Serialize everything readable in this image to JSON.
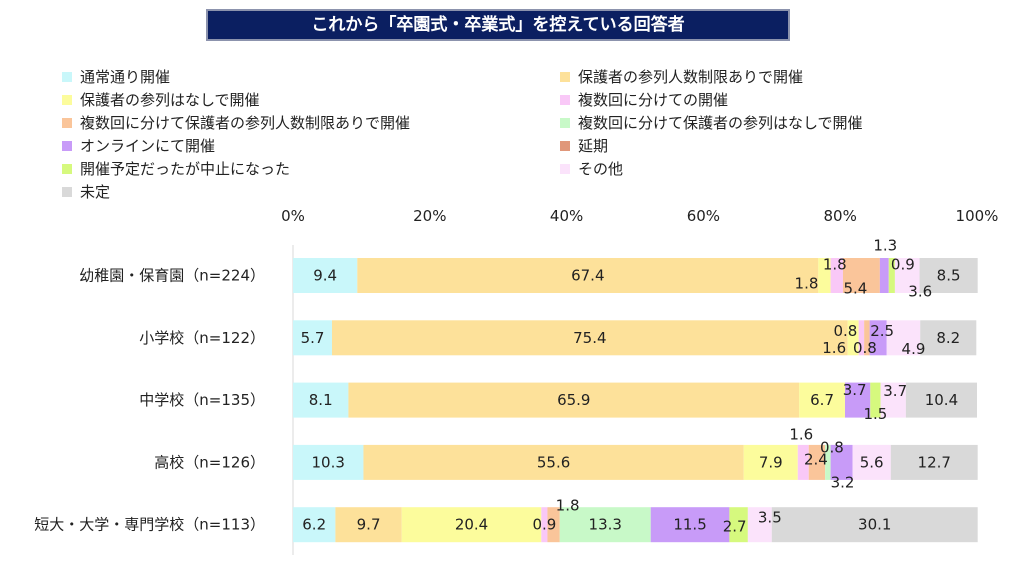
{
  "chart_data": {
    "type": "bar",
    "orientation": "horizontal",
    "stacked": true,
    "percent": true,
    "title": "これから「卒園式・卒業式」を控えている回答者",
    "xlabel": "",
    "ylabel": "",
    "xlim": [
      0,
      100
    ],
    "xticks": [
      "0%",
      "20%",
      "40%",
      "60%",
      "80%",
      "100%"
    ],
    "xtick_values": [
      0,
      20,
      40,
      60,
      80,
      100
    ],
    "legend_position": "top",
    "grid": false,
    "categories": [
      "幼稚園・保育園（n=224）",
      "小学校（n=122）",
      "中学校（n=135）",
      "高校（n=126）",
      "短大・大学・専門学校（n=113）"
    ],
    "series": [
      {
        "name": "通常通り開催",
        "color": "#C9F7FA",
        "values": [
          9.4,
          5.7,
          8.1,
          10.3,
          6.2
        ]
      },
      {
        "name": "保護者の参列人数制限ありで開催",
        "color": "#FDE19A",
        "values": [
          67.4,
          75.4,
          65.9,
          55.6,
          9.7
        ]
      },
      {
        "name": "保護者の参列はなしで開催",
        "color": "#FCFC9C",
        "values": [
          1.8,
          1.6,
          6.7,
          7.9,
          20.4
        ]
      },
      {
        "name": "複数回に分けての開催",
        "color": "#F9C8F7",
        "values": [
          1.8,
          0.8,
          null,
          1.6,
          0.9
        ]
      },
      {
        "name": "複数回に分けて保護者の参列人数制限ありで開催",
        "color": "#FAC59A",
        "values": [
          5.4,
          0.8,
          null,
          2.4,
          1.8
        ]
      },
      {
        "name": "複数回に分けて保護者の参列はなしで開催",
        "color": "#C8F9C8",
        "values": [
          null,
          null,
          null,
          0.8,
          13.3
        ]
      },
      {
        "name": "オンラインにて開催",
        "color": "#C89BF8",
        "values": [
          1.3,
          2.5,
          3.7,
          3.2,
          11.5
        ]
      },
      {
        "name": "延期",
        "color": "#E0977A",
        "values": [
          null,
          null,
          null,
          null,
          null
        ]
      },
      {
        "name": "開催予定だったが中止になった",
        "color": "#D6F97E",
        "values": [
          0.9,
          null,
          1.5,
          null,
          2.7
        ]
      },
      {
        "name": "その他",
        "color": "#FBE3FB",
        "values": [
          3.6,
          4.9,
          3.7,
          5.6,
          3.5
        ]
      },
      {
        "name": "未定",
        "color": "#D9D9D9",
        "values": [
          8.5,
          8.2,
          10.4,
          12.7,
          30.1
        ]
      }
    ]
  }
}
